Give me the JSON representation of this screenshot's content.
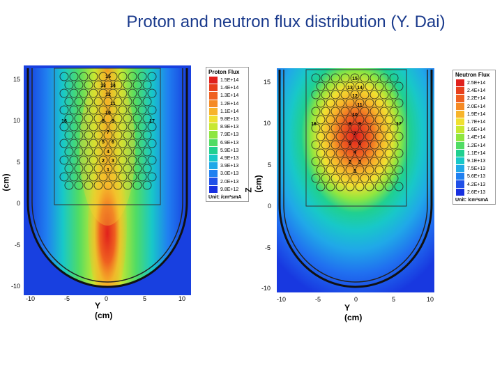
{
  "slide": {
    "title": "Proton and neutron flux distribution (Y. Dai)"
  },
  "plots": [
    {
      "id": "proton",
      "y_axis_label": "Z (cm)",
      "x_axis_label": "Y (cm)",
      "x_ticks": [
        "-10",
        "-5",
        "0",
        "5",
        "10"
      ],
      "z_ticks": [
        "15",
        "10",
        "5",
        "0",
        "-5",
        "-10"
      ],
      "legend": {
        "title": "Proton Flux",
        "unit": "Unit: /cm²smA",
        "levels": [
          "1.5E+14",
          "1.4E+14",
          "1.3E+14",
          "1.2E+14",
          "1.1E+14",
          "9.8E+13",
          "8.9E+13",
          "7.9E+13",
          "6.9E+13",
          "5.9E+13",
          "4.9E+13",
          "3.9E+13",
          "3.0E+13",
          "2.0E+13",
          "9.8E+12"
        ]
      },
      "rod_numbers": [
        {
          "n": "15"
        },
        {
          "n": "13"
        },
        {
          "n": "14"
        },
        {
          "n": "12"
        },
        {
          "n": "11"
        },
        {
          "n": "10"
        },
        {
          "n": "16"
        },
        {
          "n": "8"
        },
        {
          "n": "9"
        },
        {
          "n": "17"
        },
        {
          "n": "7"
        },
        {
          "n": "5"
        },
        {
          "n": "6"
        },
        {
          "n": "4"
        },
        {
          "n": "2"
        },
        {
          "n": "3"
        },
        {
          "n": "1"
        }
      ]
    },
    {
      "id": "neutron",
      "y_axis_label": "Z (cm)",
      "x_axis_label": "Y (cm)",
      "x_ticks": [
        "-10",
        "-5",
        "0",
        "5",
        "10"
      ],
      "z_ticks": [
        "15",
        "10",
        "5",
        "0",
        "-5",
        "-10"
      ],
      "legend": {
        "title": "Neutron Flux",
        "unit": "Unit: /cm²smA",
        "levels": [
          "2.5E+14",
          "2.4E+14",
          "2.2E+14",
          "2.0E+14",
          "1.9E+14",
          "1.7E+14",
          "1.6E+14",
          "1.4E+14",
          "1.2E+14",
          "1.1E+14",
          "9.1E+13",
          "7.5E+13",
          "5.6E+13",
          "4.2E+13",
          "2.6E+13"
        ]
      },
      "rod_numbers": [
        {
          "n": "15"
        },
        {
          "n": "13"
        },
        {
          "n": "14"
        },
        {
          "n": "12"
        },
        {
          "n": "11"
        },
        {
          "n": "10"
        },
        {
          "n": "16"
        },
        {
          "n": "8"
        },
        {
          "n": "9"
        },
        {
          "n": "17"
        },
        {
          "n": "7"
        },
        {
          "n": "5"
        },
        {
          "n": "6"
        },
        {
          "n": "4"
        },
        {
          "n": "2"
        },
        {
          "n": "3"
        },
        {
          "n": "1"
        }
      ]
    }
  ],
  "colors": {
    "title": "#1a3a8c",
    "palette": [
      "#e0201c",
      "#e8401c",
      "#ef6020",
      "#f58a24",
      "#f8b42a",
      "#f0e030",
      "#c8e830",
      "#8ee640",
      "#50dc64",
      "#20d090",
      "#18c8c8",
      "#20a8e8",
      "#2080f0",
      "#2050e8",
      "#1830e0"
    ]
  }
}
